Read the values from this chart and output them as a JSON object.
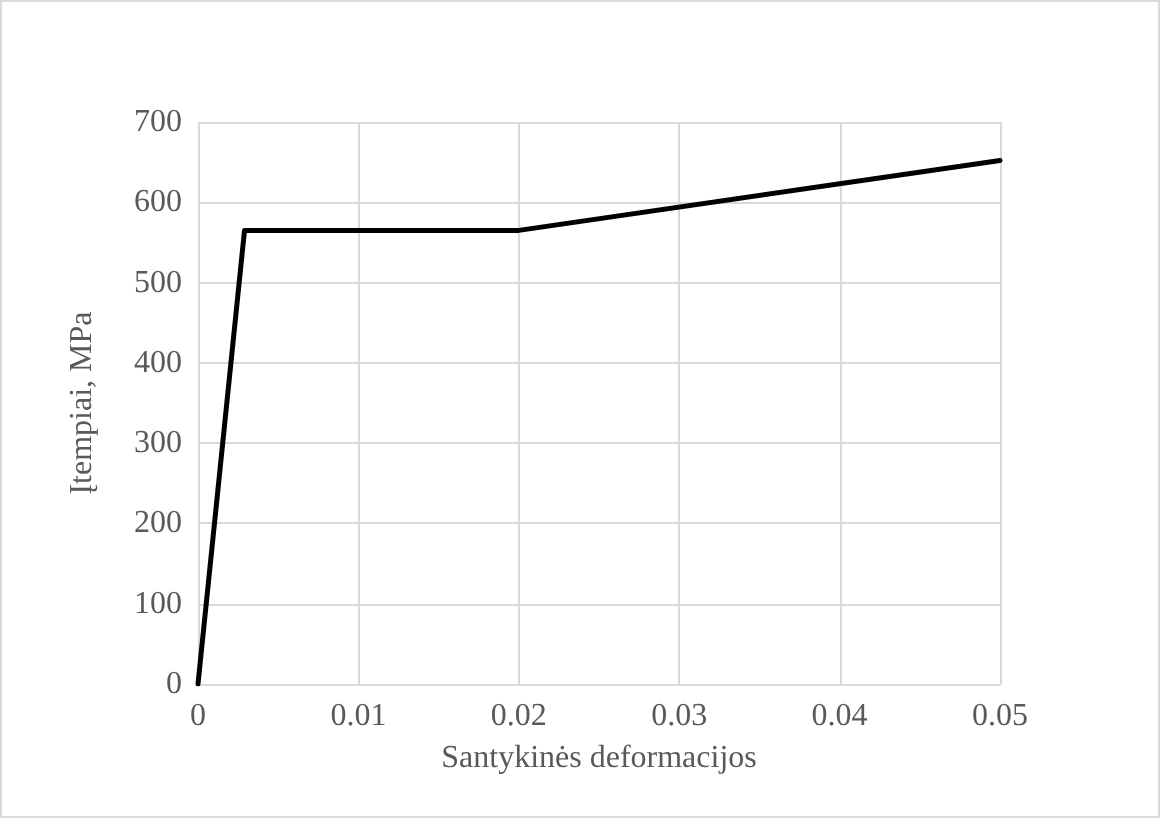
{
  "chart_data": {
    "type": "line",
    "xlabel": "Santykinės deformacijos",
    "ylabel": "Įtempiai, MPa",
    "series": [
      {
        "color": "#000000",
        "x": [
          0,
          0.0029,
          0.02,
          0.05
        ],
        "values": [
          0,
          565,
          565,
          652
        ]
      }
    ],
    "xlim": [
      0,
      0.05
    ],
    "xticks": [
      0,
      0.01,
      0.02,
      0.03,
      0.04,
      0.05
    ],
    "ylim": [
      0,
      700
    ],
    "yticks": [
      0,
      100,
      200,
      300,
      400,
      500,
      600,
      700
    ],
    "grid": true,
    "marker": "none",
    "line_style": "solid"
  }
}
